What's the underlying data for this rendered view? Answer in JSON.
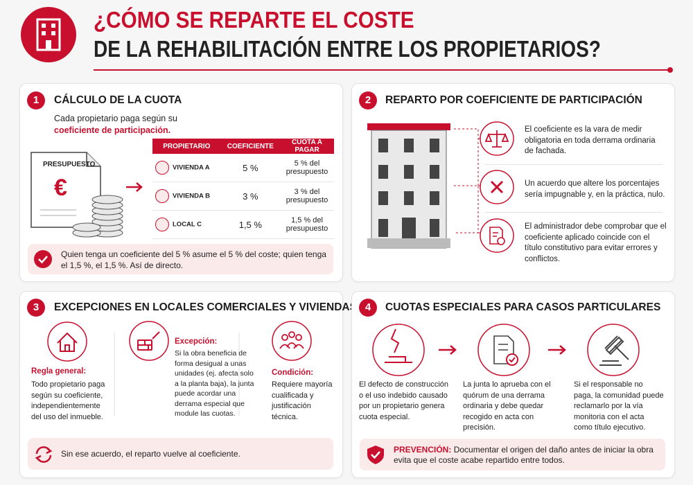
{
  "header": {
    "title_line1": "¿CÓMO SE REPARTE EL COSTE",
    "title_line2": "DE LA REHABILITACIÓN ENTRE LOS PROPIETARIOS?"
  },
  "section1": {
    "number": "1",
    "title": "CÁLCULO DE LA CUOTA",
    "intro": "Cada propietario paga según su",
    "intro_highlight": "coeficiente de participación.",
    "document_label": "PRESUPUESTO",
    "document_symbol": "€",
    "table": {
      "headers": [
        "PROPIETARIO",
        "COEFICIENTE",
        "CUOTA A PAGAR"
      ],
      "rows": [
        [
          "VIVIENDA A",
          "5 %",
          "5 % del presupuesto"
        ],
        [
          "VIVIENDA B",
          "3 %",
          "3 % del presupuesto"
        ],
        [
          "LOCAL C",
          "1,5 %",
          "1,5 % del presupuesto"
        ]
      ]
    },
    "note": "Quien tenga un coeficiente del 5 % asume el 5 % del coste; quien tenga el 1,5 %, el 1,5 %. Así de directo."
  },
  "section2": {
    "number": "2",
    "title": "REPARTO POR COEFICIENTE DE PARTICIPACIÓN",
    "items": [
      "El coeficiente es la vara de medir obligatoria en toda derrama ordinaria de fachada.",
      "Un acuerdo que altere los porcentajes sería impugnable y, en la práctica, nulo.",
      "El administrador debe comprobar que el coeficiente aplicado coincide con el título constitutivo para evitar errores y conflictos."
    ]
  },
  "section3": {
    "number": "3",
    "title": "EXCEPCIONES EN LOCALES COMERCIALES Y VIVIENDAS",
    "columns": [
      {
        "label": "Regla general:",
        "text": "Todo propietario paga según su coeficiente, independientemente del uso del inmueble."
      },
      {
        "label": "Excepción:",
        "text": "Si la obra beneficia de forma desigual a unas unidades (ej. afecta solo a la planta baja), la junta puede acordar una derrama especial que module las cuotas."
      },
      {
        "label": "Condición:",
        "text": "Requiere mayoría cualificada y justificación técnica."
      }
    ],
    "footer": "Sin ese acuerdo, el reparto vuelve al coeficiente."
  },
  "section4": {
    "number": "4",
    "title": "CUOTAS ESPECIALES PARA CASOS PARTICULARES",
    "steps": [
      "El defecto de construcción o el uso indebido causado por un propietario genera cuota especial.",
      "La junta lo aprueba con el quórum de una derrama ordinaria y debe quedar recogido en acta con precisión.",
      "Si el responsable no paga, la comunidad puede reclamarlo por la vía monitoria con el acta como título ejecutivo."
    ],
    "footer_label": "PREVENCIÓN:",
    "footer_text": "Documentar el origen del daño antes de iniciar la obra evita que el coste acabe repartido entre todos."
  }
}
